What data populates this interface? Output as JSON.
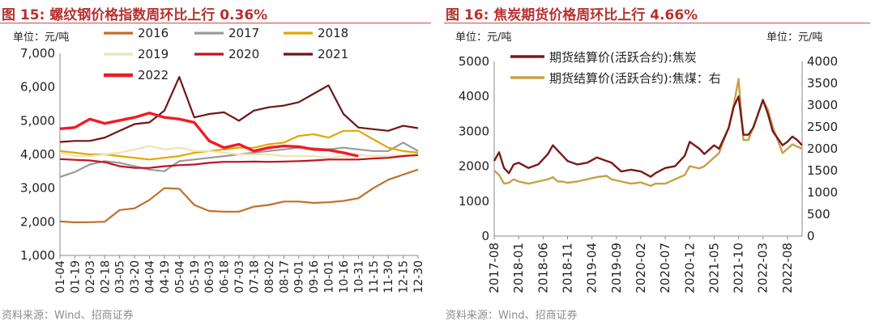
{
  "left": {
    "title": "图 15:  螺纹钢价格指数周环比上行 0.36%",
    "source": "资料来源：Wind、招商证券",
    "chart_data": {
      "type": "line",
      "unit_label": "单位：元/吨",
      "ylim": [
        1000,
        7000
      ],
      "yticks": [
        "1,000",
        "2,000",
        "3,000",
        "4,000",
        "5,000",
        "6,000",
        "7,000"
      ],
      "ytick_values": [
        1000,
        2000,
        3000,
        4000,
        5000,
        6000,
        7000
      ],
      "categories": [
        "01-04",
        "01-19",
        "02-03",
        "02-18",
        "03-05",
        "03-20",
        "04-04",
        "04-19",
        "05-04",
        "05-19",
        "06-03",
        "06-18",
        "07-03",
        "07-18",
        "08-02",
        "08-17",
        "09-01",
        "09-16",
        "10-01",
        "10-16",
        "10-31",
        "11-15",
        "11-30",
        "12-15",
        "12-30"
      ],
      "series": [
        {
          "name": "2016",
          "color": "#c0702a",
          "width": 2.2,
          "values": [
            2010,
            1985,
            1990,
            2000,
            2350,
            2400,
            2650,
            3000,
            2980,
            2500,
            2320,
            2300,
            2300,
            2450,
            2500,
            2600,
            2600,
            2560,
            2580,
            2620,
            2700,
            3000,
            3250,
            3400,
            3550
          ]
        },
        {
          "name": "2017",
          "color": "#9a9a9a",
          "width": 2.2,
          "values": [
            3330,
            3480,
            3700,
            3800,
            3750,
            3650,
            3550,
            3500,
            3800,
            3850,
            3900,
            3950,
            4000,
            4050,
            4100,
            4150,
            4200,
            4180,
            4150,
            4200,
            4150,
            4100,
            4100,
            4350,
            4100
          ]
        },
        {
          "name": "2018",
          "color": "#e0a800",
          "width": 2.2,
          "values": [
            4100,
            4050,
            4000,
            4000,
            3950,
            3900,
            3850,
            3900,
            3950,
            4050,
            4100,
            4150,
            4200,
            4200,
            4300,
            4350,
            4550,
            4600,
            4500,
            4700,
            4700,
            4450,
            4200,
            4100,
            4050
          ]
        },
        {
          "name": "2019",
          "color": "#eee3b8",
          "width": 2.2,
          "values": [
            4050,
            3950,
            3950,
            4000,
            4050,
            4150,
            4250,
            4150,
            4200,
            4100,
            4100,
            4050,
            4000,
            4000,
            4000,
            3950,
            3950,
            3950,
            3900,
            3950,
            3980,
            3950,
            3960,
            3980,
            3990
          ]
        },
        {
          "name": "2020",
          "color": "#c1121f",
          "width": 2.2,
          "values": [
            3860,
            3840,
            3820,
            3770,
            3650,
            3600,
            3600,
            3650,
            3680,
            3700,
            3750,
            3780,
            3780,
            3790,
            3780,
            3790,
            3800,
            3820,
            3850,
            3850,
            3850,
            3880,
            3900,
            3950,
            3980
          ]
        },
        {
          "name": "2021",
          "color": "#6e1616",
          "width": 2.2,
          "values": [
            4370,
            4400,
            4400,
            4500,
            4700,
            4900,
            4950,
            5300,
            6300,
            5100,
            5200,
            5250,
            5000,
            5300,
            5400,
            5450,
            5550,
            5800,
            6050,
            5200,
            4800,
            4750,
            4700,
            4850,
            4780
          ]
        },
        {
          "name": "2022",
          "color": "#ee1c24",
          "width": 3.4,
          "values": [
            4760,
            4800,
            5050,
            4920,
            5010,
            5100,
            5230,
            5100,
            5050,
            4950,
            4400,
            4200,
            4300,
            4100,
            4200,
            4250,
            4230,
            4150,
            4130,
            4050,
            3950,
            null,
            null,
            null,
            null
          ]
        }
      ]
    }
  },
  "right": {
    "title": "图 16:  焦炭期货价格周环比上行 4.66%",
    "source": "资料来源：Wind、招商证券",
    "chart_data": {
      "type": "line",
      "unit_left": "单位：元/吨",
      "unit_right": "单位：元/吨",
      "ylim_left": [
        0,
        5000
      ],
      "yticks_left": [
        "0",
        "1000",
        "2000",
        "3000",
        "4000",
        "5000"
      ],
      "ytick_left_values": [
        0,
        1000,
        2000,
        3000,
        4000,
        5000
      ],
      "ylim_right": [
        0,
        4000
      ],
      "yticks_right": [
        "0",
        "500",
        "1000",
        "1500",
        "2000",
        "2500",
        "3000",
        "3500",
        "4000"
      ],
      "ytick_right_values": [
        0,
        500,
        1000,
        1500,
        2000,
        2500,
        3000,
        3500,
        4000
      ],
      "x_labels": [
        "2017-08",
        "2018-01",
        "2018-06",
        "2018-11",
        "2019-04",
        "2019-09",
        "2020-02",
        "2020-07",
        "2020-12",
        "2021-05",
        "2021-10",
        "2022-03",
        "2022-08"
      ],
      "x_start": "2017-08",
      "series": [
        {
          "name": "期货结算价(活跃合约):焦炭",
          "axis": "left",
          "color": "#7b1a1a",
          "width": 2.4,
          "points": [
            [
              "2017-08",
              2150
            ],
            [
              "2017-09",
              2400
            ],
            [
              "2017-10",
              1950
            ],
            [
              "2017-11",
              1800
            ],
            [
              "2017-12",
              2050
            ],
            [
              "2018-01",
              2100
            ],
            [
              "2018-03",
              1950
            ],
            [
              "2018-05",
              2050
            ],
            [
              "2018-07",
              2350
            ],
            [
              "2018-08",
              2600
            ],
            [
              "2018-09",
              2450
            ],
            [
              "2018-10",
              2300
            ],
            [
              "2018-11",
              2150
            ],
            [
              "2019-01",
              2050
            ],
            [
              "2019-03",
              2100
            ],
            [
              "2019-05",
              2250
            ],
            [
              "2019-07",
              2150
            ],
            [
              "2019-08",
              2100
            ],
            [
              "2019-10",
              1850
            ],
            [
              "2019-12",
              1900
            ],
            [
              "2020-02",
              1850
            ],
            [
              "2020-04",
              1700
            ],
            [
              "2020-05",
              1800
            ],
            [
              "2020-07",
              1950
            ],
            [
              "2020-09",
              2000
            ],
            [
              "2020-11",
              2300
            ],
            [
              "2020-12",
              2700
            ],
            [
              "2021-02",
              2500
            ],
            [
              "2021-03",
              2350
            ],
            [
              "2021-05",
              2600
            ],
            [
              "2021-06",
              2500
            ],
            [
              "2021-08",
              3100
            ],
            [
              "2021-09",
              3700
            ],
            [
              "2021-10",
              4000
            ],
            [
              "2021-11",
              2900
            ],
            [
              "2021-12",
              2900
            ],
            [
              "2022-01",
              3100
            ],
            [
              "2022-03",
              3900
            ],
            [
              "2022-04",
              3500
            ],
            [
              "2022-05",
              3000
            ],
            [
              "2022-07",
              2600
            ],
            [
              "2022-08",
              2700
            ],
            [
              "2022-09",
              2850
            ],
            [
              "2022-10",
              2750
            ],
            [
              "2022-11",
              2600
            ]
          ]
        },
        {
          "name": "期货结算价(活跃合约):焦煤：右",
          "axis": "right",
          "color": "#c8a048",
          "width": 2.4,
          "points": [
            [
              "2017-08",
              1500
            ],
            [
              "2017-09",
              1400
            ],
            [
              "2017-10",
              1200
            ],
            [
              "2017-11",
              1220
            ],
            [
              "2017-12",
              1300
            ],
            [
              "2018-01",
              1250
            ],
            [
              "2018-03",
              1200
            ],
            [
              "2018-05",
              1250
            ],
            [
              "2018-07",
              1300
            ],
            [
              "2018-08",
              1350
            ],
            [
              "2018-09",
              1250
            ],
            [
              "2018-10",
              1250
            ],
            [
              "2018-11",
              1220
            ],
            [
              "2019-01",
              1250
            ],
            [
              "2019-03",
              1300
            ],
            [
              "2019-05",
              1350
            ],
            [
              "2019-07",
              1380
            ],
            [
              "2019-08",
              1300
            ],
            [
              "2019-10",
              1250
            ],
            [
              "2019-12",
              1200
            ],
            [
              "2020-02",
              1230
            ],
            [
              "2020-04",
              1150
            ],
            [
              "2020-05",
              1200
            ],
            [
              "2020-07",
              1200
            ],
            [
              "2020-09",
              1300
            ],
            [
              "2020-11",
              1400
            ],
            [
              "2020-12",
              1600
            ],
            [
              "2021-02",
              1550
            ],
            [
              "2021-03",
              1600
            ],
            [
              "2021-05",
              1800
            ],
            [
              "2021-06",
              1900
            ],
            [
              "2021-08",
              2500
            ],
            [
              "2021-09",
              3000
            ],
            [
              "2021-10",
              3600
            ],
            [
              "2021-11",
              2200
            ],
            [
              "2021-12",
              2200
            ],
            [
              "2022-01",
              2500
            ],
            [
              "2022-03",
              3100
            ],
            [
              "2022-04",
              2900
            ],
            [
              "2022-05",
              2500
            ],
            [
              "2022-07",
              1900
            ],
            [
              "2022-08",
              2000
            ],
            [
              "2022-09",
              2100
            ],
            [
              "2022-10",
              2050
            ],
            [
              "2022-11",
              2000
            ]
          ]
        }
      ]
    }
  }
}
